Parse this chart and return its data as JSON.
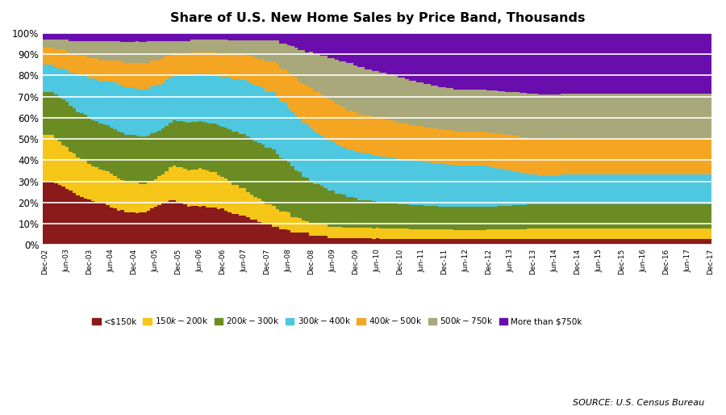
{
  "title": "Share of U.S. New Home Sales by Price Band, Thousands",
  "source": "SOURCE: U.S. Census Bureau",
  "colors": {
    "<$150k": "#8B1A1A",
    "$150k-$200k": "#F5C518",
    "$200k-$300k": "#6B8C23",
    "$300k-$400k": "#4DC8E0",
    "$400k-$500k": "#F4A623",
    "$500k-$750k": "#A8A87A",
    "More than $750k": "#6A0DAD"
  },
  "labels": [
    "<$150k",
    "$150k-$200k",
    "$200k-$300k",
    "$300k-$400k",
    "$400k-$500k",
    "$500k-$750k",
    "More than $750k"
  ],
  "tick_labels": [
    "Dec-02",
    "Jun-03",
    "Dec-03",
    "Jun-04",
    "Dec-04",
    "Jun-05",
    "Dec-05",
    "Jun-06",
    "Dec-06",
    "Jun-07",
    "Dec-07",
    "Jun-08",
    "Dec-08",
    "Jun-09",
    "Dec-09",
    "Jun-10",
    "Dec-10",
    "Jun-11",
    "Dec-11",
    "Jun-12",
    "Dec-12",
    "Jun-13",
    "Dec-13",
    "Jun-14",
    "Dec-14",
    "Jun-15",
    "Dec-15",
    "Jun-16",
    "Dec-16",
    "Jun-17",
    "Dec-17"
  ],
  "tick_positions_months": [
    0,
    6,
    12,
    18,
    24,
    30,
    36,
    42,
    48,
    54,
    60,
    66,
    72,
    78,
    84,
    90,
    96,
    102,
    108,
    114,
    120,
    126,
    132,
    138,
    144,
    150,
    156,
    162,
    168,
    174,
    180
  ],
  "raw_data": {
    "<$150k": [
      30,
      30,
      30,
      29,
      29,
      28,
      27,
      26,
      25,
      24,
      23,
      22,
      22,
      21,
      20,
      20,
      20,
      19,
      18,
      17,
      16,
      16,
      15,
      15,
      15,
      15,
      15,
      15,
      16,
      17,
      18,
      19,
      20,
      21,
      22,
      22,
      21,
      20,
      19,
      18,
      18,
      18,
      18,
      18,
      17,
      17,
      17,
      16,
      16,
      15,
      14,
      13,
      13,
      12,
      12,
      11,
      10,
      10,
      9,
      8,
      8,
      8,
      7,
      7,
      6,
      6,
      6,
      5,
      5,
      5,
      5,
      5,
      4,
      4,
      4,
      4,
      4,
      3,
      3,
      3,
      3,
      3,
      3,
      3,
      3,
      3,
      3,
      3,
      3,
      3,
      3,
      3,
      3,
      3,
      3,
      3,
      3,
      3,
      3,
      3,
      3,
      3,
      3,
      3,
      3,
      3,
      3,
      3,
      3,
      3,
      3,
      3,
      3,
      3,
      3,
      3,
      3,
      3,
      3,
      3,
      3,
      3,
      3,
      3,
      3,
      3,
      3,
      3,
      3,
      3,
      3,
      3,
      3,
      3,
      3,
      3,
      3,
      3,
      3,
      3,
      3,
      3,
      3,
      3,
      3,
      3,
      3,
      3,
      3,
      3,
      3,
      3,
      3,
      3,
      3,
      3,
      3,
      3,
      3,
      3,
      3,
      3,
      3,
      3,
      3,
      3,
      3,
      3,
      3,
      3,
      3,
      3,
      3,
      3,
      3,
      3,
      3,
      3,
      3,
      3,
      3
    ],
    "$150k-$200k": [
      22,
      22,
      22,
      21,
      21,
      20,
      20,
      19,
      19,
      18,
      18,
      18,
      17,
      17,
      17,
      16,
      16,
      16,
      16,
      15,
      15,
      14,
      14,
      14,
      14,
      14,
      13,
      13,
      13,
      13,
      13,
      14,
      14,
      15,
      16,
      17,
      17,
      17,
      17,
      17,
      17,
      17,
      18,
      17,
      17,
      16,
      16,
      15,
      14,
      14,
      13,
      12,
      12,
      11,
      11,
      10,
      10,
      9,
      9,
      9,
      8,
      8,
      8,
      7,
      7,
      7,
      7,
      6,
      6,
      6,
      5,
      5,
      5,
      5,
      5,
      5,
      5,
      5,
      5,
      5,
      5,
      5,
      5,
      5,
      5,
      5,
      5,
      5,
      5,
      5,
      5,
      5,
      5,
      5,
      5,
      5,
      5,
      5,
      5,
      5,
      5,
      5,
      5,
      5,
      5,
      5,
      5,
      5,
      5,
      5,
      5,
      5,
      5,
      5,
      5,
      5,
      5,
      5,
      5,
      5,
      5,
      5,
      5,
      5,
      5,
      5,
      5,
      5,
      5,
      5,
      5,
      5,
      5,
      5,
      5,
      5,
      5,
      5,
      5,
      5,
      5,
      5,
      5,
      5,
      5,
      5,
      5,
      5,
      5,
      5,
      5,
      5,
      5,
      5,
      5,
      5,
      5,
      5,
      5,
      5,
      5,
      5,
      5,
      5,
      5,
      5,
      5,
      5,
      5,
      5,
      5,
      5,
      5,
      5,
      5,
      5,
      5,
      5,
      5,
      5,
      5
    ],
    "$200k-$300k": [
      20,
      20,
      20,
      21,
      21,
      22,
      22,
      22,
      22,
      22,
      22,
      22,
      22,
      22,
      22,
      22,
      22,
      22,
      22,
      22,
      22,
      22,
      22,
      22,
      22,
      22,
      22,
      22,
      22,
      22,
      22,
      22,
      22,
      22,
      22,
      22,
      22,
      22,
      22,
      22,
      22,
      22,
      22,
      22,
      22,
      22,
      22,
      22,
      22,
      22,
      22,
      22,
      22,
      22,
      22,
      22,
      22,
      22,
      22,
      22,
      22,
      22,
      22,
      21,
      21,
      20,
      20,
      20,
      19,
      19,
      18,
      18,
      18,
      17,
      17,
      17,
      16,
      16,
      16,
      15,
      15,
      15,
      14,
      14,
      14,
      13,
      13,
      13,
      13,
      13,
      12,
      12,
      12,
      12,
      12,
      12,
      12,
      12,
      12,
      12,
      12,
      12,
      12,
      12,
      12,
      12,
      12,
      12,
      12,
      12,
      12,
      12,
      12,
      12,
      12,
      12,
      12,
      12,
      12,
      12,
      12,
      12,
      12,
      12,
      12,
      12,
      12,
      12,
      12,
      12,
      12,
      12,
      12,
      12,
      12,
      12,
      12,
      12,
      12,
      12,
      12,
      12,
      12,
      12,
      12,
      12,
      12,
      12,
      12,
      12,
      12,
      12,
      12,
      12,
      12,
      12,
      12,
      12,
      12,
      12,
      12,
      12,
      12,
      12,
      12,
      12,
      12,
      12,
      12,
      12,
      12,
      12,
      12,
      12,
      12,
      12,
      12,
      12,
      12,
      12,
      12
    ],
    "$300k-$400k": [
      13,
      13,
      13,
      13,
      14,
      15,
      15,
      16,
      17,
      18,
      18,
      19,
      19,
      20,
      20,
      20,
      21,
      21,
      22,
      22,
      22,
      22,
      22,
      22,
      22,
      22,
      22,
      22,
      22,
      22,
      22,
      22,
      22,
      22,
      22,
      22,
      22,
      22,
      22,
      22,
      22,
      22,
      22,
      22,
      22,
      22,
      22,
      22,
      22,
      22,
      22,
      22,
      22,
      22,
      22,
      22,
      22,
      22,
      22,
      22,
      22,
      22,
      22,
      22,
      22,
      22,
      22,
      22,
      22,
      22,
      22,
      22,
      22,
      22,
      22,
      22,
      22,
      22,
      22,
      22,
      22,
      22,
      22,
      22,
      22,
      22,
      22,
      22,
      22,
      22,
      22,
      22,
      22,
      22,
      22,
      22,
      22,
      22,
      22,
      22,
      22,
      22,
      22,
      22,
      22,
      22,
      22,
      22,
      22,
      22,
      22,
      22,
      22,
      22,
      22,
      22,
      22,
      22,
      22,
      22,
      21,
      20,
      20,
      19,
      19,
      18,
      18,
      17,
      17,
      16,
      16,
      15,
      15,
      15,
      14,
      14,
      14,
      14,
      14,
      14,
      15,
      15,
      15,
      15,
      15,
      15,
      15,
      15,
      15,
      15,
      15,
      15,
      15,
      15,
      15,
      15,
      15,
      15,
      15,
      15,
      15,
      15,
      15,
      15,
      15,
      15,
      15,
      15,
      15,
      15,
      15,
      15,
      15,
      15,
      15,
      15,
      15,
      15,
      15,
      15,
      15
    ],
    "$400k-$500k": [
      8,
      8,
      8,
      8,
      9,
      9,
      9,
      9,
      9,
      9,
      9,
      9,
      10,
      10,
      10,
      10,
      10,
      10,
      10,
      10,
      11,
      11,
      11,
      11,
      11,
      12,
      12,
      12,
      12,
      12,
      12,
      12,
      12,
      12,
      11,
      11,
      11,
      10,
      10,
      10,
      10,
      10,
      10,
      10,
      10,
      10,
      10,
      10,
      10,
      10,
      10,
      10,
      10,
      10,
      10,
      10,
      11,
      11,
      11,
      11,
      12,
      12,
      12,
      13,
      13,
      13,
      14,
      14,
      15,
      15,
      16,
      16,
      17,
      17,
      18,
      18,
      18,
      18,
      18,
      18,
      18,
      18,
      18,
      18,
      18,
      18,
      18,
      18,
      18,
      18,
      18,
      18,
      18,
      18,
      18,
      18,
      18,
      18,
      18,
      18,
      18,
      18,
      18,
      18,
      18,
      18,
      18,
      18,
      18,
      18,
      18,
      18,
      18,
      18,
      18,
      18,
      18,
      18,
      18,
      18,
      18,
      18,
      18,
      18,
      18,
      18,
      18,
      18,
      18,
      18,
      18,
      18,
      18,
      18,
      18,
      18,
      18,
      18,
      18,
      18,
      18,
      18,
      18,
      18,
      18,
      18,
      18,
      18,
      18,
      18,
      18,
      18,
      18,
      18,
      18,
      18,
      18,
      18,
      18,
      18,
      18,
      18,
      18,
      18,
      18,
      18,
      18,
      18,
      18,
      18,
      18,
      18,
      18,
      18,
      18,
      18,
      18,
      18,
      18,
      18,
      18
    ],
    "$500k-$750k": [
      4,
      4,
      4,
      5,
      5,
      5,
      6,
      6,
      6,
      7,
      7,
      7,
      8,
      8,
      8,
      9,
      9,
      9,
      9,
      9,
      9,
      9,
      10,
      10,
      10,
      10,
      10,
      10,
      10,
      9,
      9,
      9,
      8,
      7,
      7,
      6,
      6,
      6,
      6,
      6,
      6,
      6,
      6,
      6,
      6,
      6,
      6,
      6,
      6,
      6,
      6,
      6,
      6,
      6,
      6,
      6,
      6,
      7,
      7,
      7,
      8,
      8,
      8,
      9,
      10,
      10,
      11,
      12,
      12,
      13,
      14,
      14,
      15,
      16,
      16,
      17,
      18,
      18,
      19,
      20,
      20,
      21,
      22,
      22,
      22,
      22,
      22,
      22,
      22,
      22,
      22,
      22,
      22,
      22,
      22,
      22,
      22,
      22,
      22,
      22,
      22,
      22,
      22,
      22,
      22,
      22,
      22,
      22,
      22,
      22,
      22,
      22,
      22,
      22,
      22,
      22,
      22,
      22,
      22,
      22,
      22,
      22,
      22,
      22,
      22,
      22,
      22,
      22,
      22,
      22,
      22,
      22,
      22,
      22,
      22,
      22,
      22,
      22,
      22,
      22,
      22,
      22,
      22,
      22,
      22,
      22,
      22,
      22,
      22,
      22,
      22,
      22,
      22,
      22,
      22,
      22,
      22,
      22,
      22,
      22,
      22,
      22,
      22,
      22,
      22,
      22,
      22,
      22,
      22,
      22,
      22,
      22,
      22,
      22,
      22,
      22,
      22,
      22,
      22,
      22,
      22
    ],
    "More than $750k": [
      3,
      3,
      3,
      3,
      3,
      3,
      3,
      4,
      4,
      4,
      4,
      4,
      4,
      4,
      4,
      4,
      4,
      4,
      4,
      4,
      4,
      4,
      4,
      4,
      4,
      4,
      4,
      4,
      4,
      4,
      4,
      4,
      4,
      4,
      4,
      4,
      4,
      4,
      4,
      4,
      3,
      3,
      3,
      3,
      3,
      3,
      3,
      3,
      3,
      3,
      3,
      3,
      3,
      3,
      3,
      3,
      3,
      3,
      3,
      3,
      3,
      3,
      3,
      3,
      4,
      4,
      5,
      5,
      6,
      7,
      7,
      8,
      8,
      9,
      9,
      10,
      10,
      11,
      11,
      12,
      13,
      13,
      14,
      14,
      15,
      16,
      16,
      17,
      17,
      18,
      18,
      19,
      19,
      20,
      20,
      21,
      22,
      22,
      23,
      24,
      24,
      25,
      25,
      26,
      26,
      27,
      27,
      28,
      28,
      29,
      29,
      30,
      30,
      30,
      30,
      30,
      30,
      30,
      30,
      30,
      30,
      30,
      30,
      30,
      30,
      30,
      30,
      30,
      30,
      30,
      30,
      30,
      30,
      30,
      30,
      30,
      30,
      30,
      30,
      30,
      30,
      30,
      30,
      30,
      30,
      30,
      30,
      30,
      30,
      30,
      30,
      30,
      30,
      30,
      30,
      30,
      30,
      30,
      30,
      30,
      30,
      30,
      30,
      30,
      30,
      30,
      30,
      30,
      30,
      30,
      30,
      30,
      30,
      30,
      30,
      30,
      30,
      30,
      30,
      30,
      30
    ]
  }
}
